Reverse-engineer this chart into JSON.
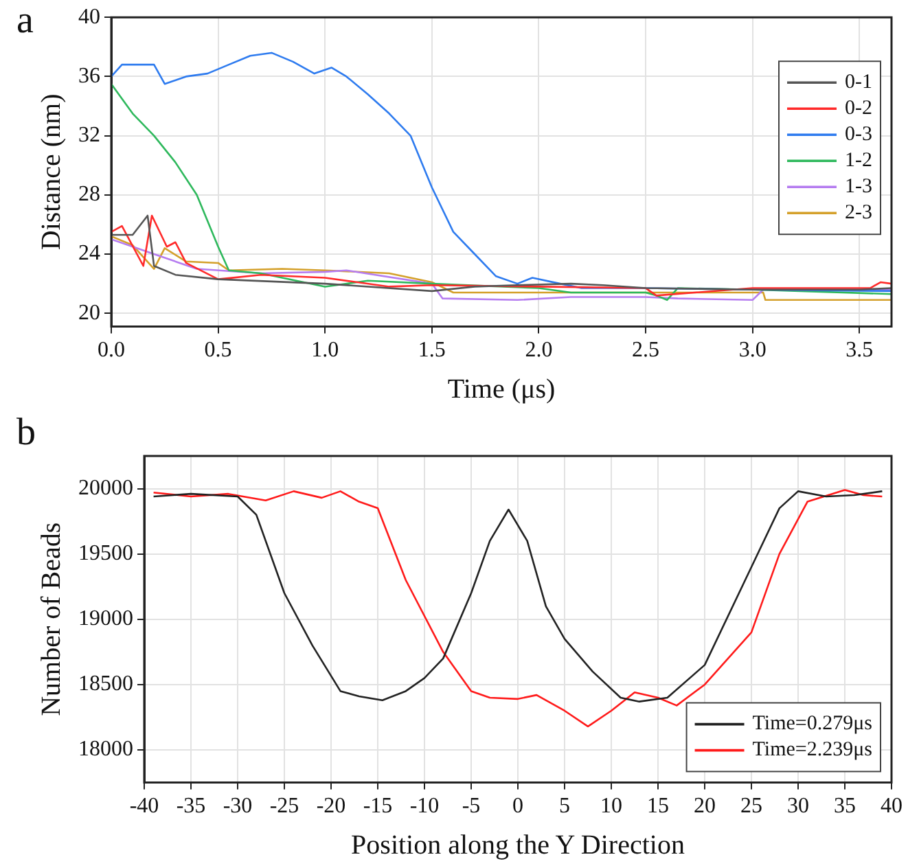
{
  "chart_data": [
    {
      "type": "line",
      "xlabel": "Time (μs)",
      "ylabel": "Distance (nm)",
      "annotations": [
        "a"
      ],
      "xlim": [
        0,
        3.65
      ],
      "ylim": [
        19.1,
        40
      ],
      "xticks": [
        {
          "value": 0,
          "label": "0.0"
        },
        0.5,
        {
          "value": 1,
          "label": "1.0"
        },
        1.5,
        {
          "value": 2,
          "label": "2.0"
        },
        2.5,
        {
          "value": 3,
          "label": "3.0"
        },
        3.5
      ],
      "yticks": [
        20,
        24,
        28,
        32,
        36,
        40
      ],
      "grid": true,
      "legend": "top right",
      "line_style": "solid",
      "marker": "none",
      "series": [
        {
          "name": "0-1",
          "color": "#555555",
          "x": [
            0,
            0.1,
            0.17,
            0.2,
            0.3,
            0.5,
            1.0,
            1.5,
            1.7,
            1.9,
            2.15,
            2.3,
            2.5,
            3.0,
            3.5,
            3.65
          ],
          "values": [
            25.3,
            25.3,
            26.6,
            23.2,
            22.6,
            22.3,
            22.0,
            21.5,
            21.8,
            21.9,
            22,
            21.9,
            21.7,
            21.6,
            21.6,
            21.7
          ]
        },
        {
          "name": "0-2",
          "color": "#ff2a2a",
          "x": [
            0,
            0.05,
            0.15,
            0.19,
            0.26,
            0.3,
            0.35,
            0.5,
            0.7,
            1.0,
            1.3,
            1.5,
            2.0,
            2.5,
            2.55,
            3.0,
            3.55,
            3.6,
            3.65
          ],
          "values": [
            25.5,
            25.9,
            23.2,
            26.6,
            24.5,
            24.8,
            23.4,
            22.3,
            22.6,
            22.4,
            21.8,
            21.9,
            21.8,
            21.7,
            21.2,
            21.7,
            21.7,
            22.1,
            22
          ]
        },
        {
          "name": "0-3",
          "color": "#2e7bef",
          "x": [
            0,
            0.05,
            0.2,
            0.25,
            0.35,
            0.45,
            0.55,
            0.65,
            0.75,
            0.85,
            0.95,
            1.03,
            1.1,
            1.2,
            1.3,
            1.4,
            1.5,
            1.6,
            1.7,
            1.8,
            1.9,
            1.97,
            2.1,
            2.2,
            2.5,
            3.0,
            3.65
          ],
          "values": [
            36,
            36.8,
            36.8,
            35.5,
            36,
            36.2,
            36.8,
            37.4,
            37.6,
            37,
            36.2,
            36.6,
            36,
            34.8,
            33.5,
            32,
            28.5,
            25.5,
            24,
            22.5,
            22,
            22.4,
            22,
            21.7,
            21.7,
            21.6,
            21.5
          ]
        },
        {
          "name": "1-2",
          "color": "#2eb85c",
          "x": [
            0,
            0.1,
            0.2,
            0.3,
            0.4,
            0.5,
            0.55,
            0.7,
            1.0,
            1.2,
            1.5,
            2.0,
            2.15,
            2.5,
            2.55,
            2.6,
            2.65,
            3.0,
            3.65
          ],
          "values": [
            35.5,
            33.5,
            32,
            30.2,
            28,
            24.5,
            22.9,
            22.7,
            21.8,
            22.2,
            22,
            21.7,
            21.4,
            21.4,
            21.2,
            20.9,
            21.7,
            21.6,
            21.3
          ]
        },
        {
          "name": "1-3",
          "color": "#b57cf0",
          "x": [
            0,
            0.2,
            0.4,
            0.7,
            1.0,
            1.1,
            1.5,
            1.55,
            1.9,
            2.15,
            2.5,
            2.65,
            3.0,
            3.05,
            3.65
          ],
          "values": [
            25,
            24,
            23,
            22.7,
            22.8,
            22.9,
            22,
            21,
            20.9,
            21.1,
            21.1,
            21,
            20.9,
            21.6,
            21.6
          ]
        },
        {
          "name": "2-3",
          "color": "#d4a02a",
          "x": [
            0,
            0.1,
            0.2,
            0.25,
            0.35,
            0.5,
            0.55,
            0.8,
            1.0,
            1.3,
            1.5,
            1.6,
            2.0,
            2.5,
            3.05,
            3.06,
            3.65
          ],
          "values": [
            25.2,
            24.6,
            23,
            24.4,
            23.5,
            23.4,
            22.9,
            23,
            22.9,
            22.7,
            22.1,
            21.4,
            21.4,
            21.4,
            21.4,
            20.9,
            20.9
          ]
        }
      ]
    },
    {
      "type": "line",
      "xlabel": "Position along the Y Direction",
      "ylabel": "Number of Beads",
      "annotations": [
        "b"
      ],
      "xlim": [
        -40,
        40
      ],
      "ylim": [
        17750,
        20250
      ],
      "xticks": [
        -40,
        -35,
        -30,
        -25,
        -20,
        -15,
        -10,
        -5,
        0,
        5,
        10,
        15,
        20,
        25,
        30,
        35,
        40
      ],
      "yticks": [
        18000,
        18500,
        19000,
        19500,
        20000
      ],
      "grid": true,
      "legend": "bottom right",
      "line_style": "solid",
      "marker": "none",
      "series": [
        {
          "name": "Time=0.279μs",
          "color": "#222222",
          "x": [
            -39,
            -35,
            -30,
            -28,
            -25,
            -22,
            -19,
            -17,
            -14.5,
            -12,
            -10,
            -8,
            -5,
            -3,
            -1,
            1,
            3,
            5,
            8,
            11,
            13,
            16,
            20,
            25,
            28,
            30,
            33,
            36,
            39
          ],
          "values": [
            19940,
            19960,
            19940,
            19800,
            19200,
            18800,
            18450,
            18410,
            18380,
            18450,
            18550,
            18700,
            19200,
            19600,
            19840,
            19600,
            19100,
            18850,
            18600,
            18400,
            18370,
            18400,
            18650,
            19400,
            19850,
            19980,
            19940,
            19950,
            19980
          ]
        },
        {
          "name": "Time=2.239μs",
          "color": "#ff1a1a",
          "x": [
            -39,
            -35,
            -31,
            -27,
            -24,
            -21,
            -19,
            -17,
            -15,
            -12,
            -8,
            -5,
            -3,
            0,
            2,
            5,
            7.5,
            10,
            12.5,
            15,
            17,
            20,
            25,
            28,
            31,
            35,
            37,
            39
          ],
          "values": [
            19970,
            19940,
            19960,
            19910,
            19980,
            19930,
            19980,
            19900,
            19850,
            19300,
            18750,
            18450,
            18400,
            18390,
            18420,
            18300,
            18180,
            18300,
            18440,
            18400,
            18340,
            18500,
            18900,
            19500,
            19900,
            19990,
            19950,
            19940
          ]
        }
      ]
    }
  ]
}
